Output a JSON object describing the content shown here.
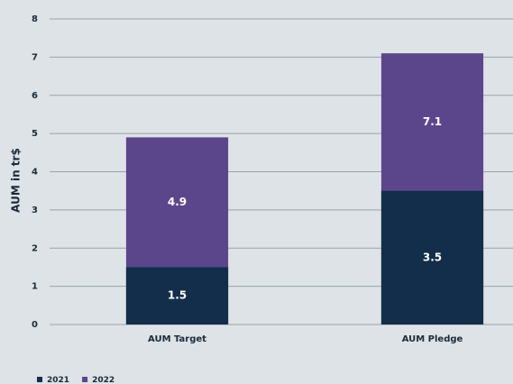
{
  "chart_data": {
    "type": "bar",
    "overlap": true,
    "y_label": "AUM in tr$",
    "categories": [
      "AUM Target",
      "AUM Pledge"
    ],
    "series": [
      {
        "name": "2021",
        "color": "#132e4b",
        "values": [
          1.5,
          3.5
        ]
      },
      {
        "name": "2022",
        "color": "#5b468c",
        "values": [
          4.9,
          7.1
        ]
      }
    ],
    "ylim": [
      0,
      8
    ],
    "yticks": [
      0,
      1,
      2,
      3,
      4,
      5,
      6,
      7,
      8
    ],
    "grid": true,
    "legend": "bottom-left"
  }
}
